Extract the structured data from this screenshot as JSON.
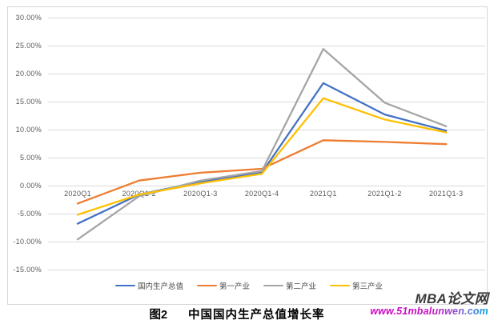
{
  "chart_data": {
    "type": "line",
    "title": "",
    "categories": [
      "2020Q1",
      "2020Q1-2",
      "2020Q1-3",
      "2020Q1-4",
      "2021Q1",
      "2021Q1-2",
      "2021Q1-3"
    ],
    "series": [
      {
        "name": "国内生产总值",
        "color": "#4472C4",
        "values": [
          -6.8,
          -1.6,
          0.7,
          2.3,
          18.3,
          12.7,
          9.8
        ]
      },
      {
        "name": "第一产业",
        "color": "#ED7D31",
        "values": [
          -3.2,
          0.9,
          2.3,
          3.0,
          8.1,
          7.8,
          7.4
        ]
      },
      {
        "name": "第二产业",
        "color": "#A5A5A5",
        "values": [
          -9.6,
          -1.9,
          0.9,
          2.6,
          24.4,
          14.8,
          10.6
        ]
      },
      {
        "name": "第三产业",
        "color": "#FFC000",
        "values": [
          -5.2,
          -1.6,
          0.4,
          2.1,
          15.6,
          11.8,
          9.5
        ]
      }
    ],
    "y_axis": {
      "min": -15,
      "max": 30,
      "step": 5,
      "unit": "%",
      "tick_labels": [
        "30.00%",
        "25.00%",
        "20.00%",
        "15.00%",
        "10.00%",
        "5.00%",
        "0.00%",
        "-5.00%",
        "-10.00%",
        "-15.00%"
      ]
    },
    "grid": true,
    "legend_position": "bottom",
    "gridline_color": "#d9d9d9",
    "frame_color": "#d6d6d6"
  },
  "caption": {
    "prefix": "图2",
    "title": "中国国内生产总值增长率"
  },
  "watermark": {
    "name": "MBA论文网",
    "url": "www.51mbalunwen.com"
  }
}
